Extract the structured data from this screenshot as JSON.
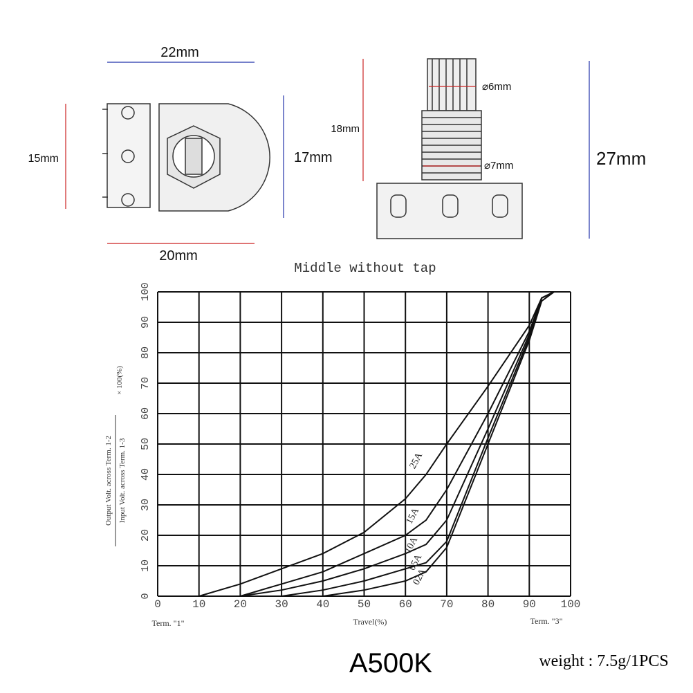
{
  "dimensions": {
    "width_top": "22mm",
    "height_left": "15mm",
    "height_right": "17mm",
    "width_bottom": "20mm",
    "shaft_length": "18mm",
    "shaft_diameter": "⌀6mm",
    "thread_diameter": "⌀7mm",
    "total_height": "27mm"
  },
  "chart_data": {
    "type": "line",
    "title": "Middle without tap",
    "x_label": "Travel(%)",
    "x_start_label": "Term. \"1\"",
    "x_end_label": "Term. \"3\"",
    "y_label_top": "Output Volt. across Term. 1-2",
    "y_label_bottom": "Input Volt. across Term. 1-3",
    "y_label_suffix": "× 100(%)",
    "x": [
      10,
      20,
      30,
      40,
      50,
      60,
      65,
      70,
      80,
      90,
      93,
      96,
      100
    ],
    "series": [
      {
        "name": "25A",
        "color": "#111111",
        "values": [
          0,
          4,
          9,
          14,
          21,
          32,
          40,
          50,
          69,
          89,
          98,
          100,
          100
        ]
      },
      {
        "name": "15A",
        "color": "#111111",
        "values": [
          null,
          0,
          4,
          8,
          14,
          20,
          25,
          35,
          60,
          87,
          98,
          100,
          100
        ]
      },
      {
        "name": "10A",
        "color": "#111111",
        "values": [
          null,
          0,
          2,
          5,
          9,
          14,
          17,
          25,
          55,
          86,
          98,
          100,
          100
        ]
      },
      {
        "name": "05A",
        "color": "#111111",
        "values": [
          null,
          null,
          0,
          2,
          5,
          9,
          11,
          18,
          52,
          85,
          97,
          100,
          100
        ]
      },
      {
        "name": "02A",
        "color": "#111111",
        "values": [
          null,
          null,
          null,
          0,
          2,
          5,
          8,
          16,
          50,
          84,
          97,
          100,
          100
        ]
      }
    ],
    "xlim": [
      0,
      100
    ],
    "ylim": [
      0,
      100
    ],
    "xticks": [
      0,
      10,
      20,
      30,
      40,
      50,
      60,
      70,
      80,
      90,
      100
    ],
    "yticks": [
      0,
      10,
      20,
      30,
      40,
      50,
      60,
      70,
      80,
      90,
      100
    ],
    "grid": true
  },
  "footer": {
    "model": "A500K",
    "weight": "weight : 7.5g/1PCS"
  }
}
